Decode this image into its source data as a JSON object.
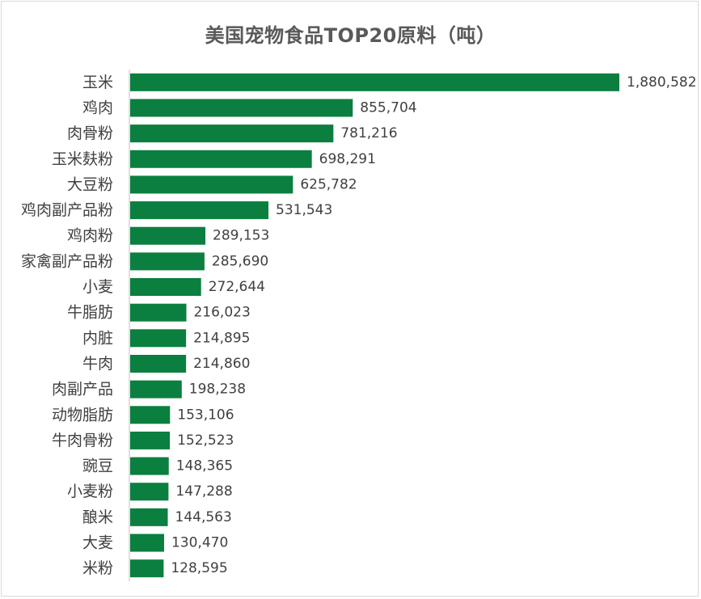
{
  "chart_data": {
    "type": "bar",
    "orientation": "horizontal",
    "title": "美国宠物食品TOP20原料（吨）",
    "xlabel": "",
    "ylabel": "",
    "xlim": [
      0,
      1880582
    ],
    "grid": false,
    "legend": "none",
    "bar_color": "#0b7f3f",
    "text_color": "#404040",
    "title_color": "#595959",
    "categories": [
      "玉米",
      "鸡肉",
      "肉骨粉",
      "玉米麸粉",
      "大豆粉",
      "鸡肉副产品粉",
      "鸡肉粉",
      "家禽副产品粉",
      "小麦",
      "牛脂肪",
      "内脏",
      "牛肉",
      "肉副产品",
      "动物脂肪",
      "牛肉骨粉",
      "豌豆",
      "小麦粉",
      "酿米",
      "大麦",
      "米粉"
    ],
    "values": [
      1880582,
      855704,
      781216,
      698291,
      625782,
      531543,
      289153,
      285690,
      272644,
      216023,
      214895,
      214860,
      198238,
      153106,
      152523,
      148365,
      147288,
      144563,
      130470,
      128595
    ],
    "value_labels": [
      "1,880,582",
      "855,704",
      "781,216",
      "698,291",
      "625,782",
      "531,543",
      "289,153",
      "285,690",
      "272,644",
      "216,023",
      "214,895",
      "214,860",
      "198,238",
      "153,106",
      "152,523",
      "148,365",
      "147,288",
      "144,563",
      "130,470",
      "128,595"
    ]
  }
}
